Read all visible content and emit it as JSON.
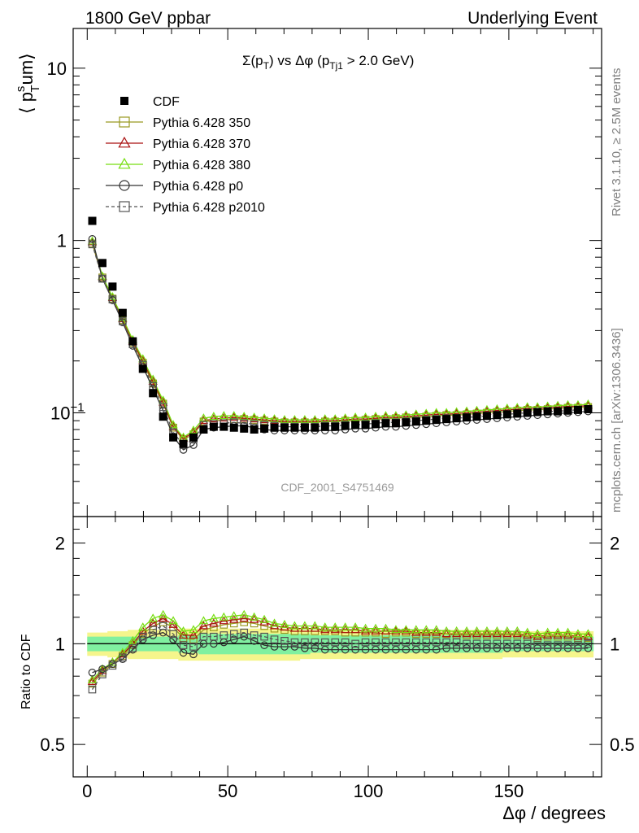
{
  "header": {
    "left": "1800 GeV ppbar",
    "right": "Underlying Event"
  },
  "side_labels": {
    "rivet": "Rivet 3.1.10, ≥ 2.5M events",
    "mcplots": "mcplots.cern.ch [arXiv:1306.3436]"
  },
  "watermark": "CDF_2001_S4751469",
  "plot_title": {
    "sigma": "Σ(p",
    "sub_T": "T",
    "mid": ") vs Δφ (p",
    "sub_Tj1": "Tj1",
    "end": " > 2.0 GeV)"
  },
  "ylabel_top": {
    "pre": "⟨ p",
    "sup": "s",
    "sub": "T",
    "post": "um⟩"
  },
  "ylabel_bottom": "Ratio to CDF",
  "xlabel": "Δφ / degrees",
  "chart_data": [
    {
      "type": "scatter",
      "scale": "log",
      "xlim": [
        -5,
        183
      ],
      "ylim": [
        0.025,
        17
      ],
      "y_tick_labels": [
        {
          "value": 10,
          "label": "10"
        },
        {
          "value": 1,
          "label": "1"
        },
        {
          "value": 0.1,
          "label": "10",
          "sup": "−1"
        }
      ],
      "legend": {
        "placement": "top-left"
      },
      "x": [
        1.8,
        5.4,
        9.0,
        12.6,
        16.2,
        19.8,
        23.4,
        27.0,
        30.6,
        34.2,
        37.8,
        41.4,
        45.0,
        48.6,
        52.2,
        55.8,
        59.4,
        63.0,
        66.6,
        70.2,
        73.8,
        77.4,
        81.0,
        84.6,
        88.2,
        91.8,
        95.4,
        99.0,
        102.6,
        106.2,
        109.8,
        113.4,
        117.0,
        120.6,
        124.2,
        127.8,
        131.4,
        135.0,
        138.6,
        142.2,
        145.8,
        149.4,
        153.0,
        156.6,
        160.2,
        163.8,
        167.4,
        171.0,
        174.6,
        178.2
      ],
      "series": [
        {
          "name": "CDF",
          "color": "#000000",
          "marker": "filled-square",
          "line": "none",
          "values": [
            1.3,
            0.74,
            0.54,
            0.38,
            0.26,
            0.18,
            0.13,
            0.095,
            0.072,
            0.066,
            0.072,
            0.08,
            0.083,
            0.083,
            0.082,
            0.081,
            0.08,
            0.081,
            0.082,
            0.082,
            0.082,
            0.082,
            0.082,
            0.083,
            0.083,
            0.084,
            0.085,
            0.085,
            0.086,
            0.087,
            0.087,
            0.088,
            0.089,
            0.09,
            0.091,
            0.092,
            0.093,
            0.094,
            0.095,
            0.096,
            0.097,
            0.098,
            0.099,
            0.1,
            0.101,
            0.102,
            0.102,
            0.103,
            0.104,
            0.105
          ]
        },
        {
          "name": "Pythia 6.428 350",
          "color": "#999922",
          "marker": "open-square",
          "line": "solid",
          "values": [
            0.96,
            0.61,
            0.46,
            0.345,
            0.255,
            0.195,
            0.148,
            0.113,
            0.082,
            0.07,
            0.075,
            0.089,
            0.09,
            0.091,
            0.092,
            0.092,
            0.091,
            0.09,
            0.089,
            0.088,
            0.088,
            0.088,
            0.088,
            0.089,
            0.089,
            0.09,
            0.09,
            0.091,
            0.092,
            0.092,
            0.093,
            0.094,
            0.094,
            0.095,
            0.096,
            0.097,
            0.097,
            0.098,
            0.099,
            0.1,
            0.101,
            0.102,
            0.103,
            0.104,
            0.104,
            0.105,
            0.106,
            0.107,
            0.107,
            0.108
          ]
        },
        {
          "name": "Pythia 6.428 370",
          "color": "#aa1111",
          "marker": "open-triangle",
          "line": "solid",
          "values": [
            0.98,
            0.615,
            0.465,
            0.35,
            0.26,
            0.2,
            0.152,
            0.115,
            0.083,
            0.071,
            0.077,
            0.09,
            0.092,
            0.093,
            0.094,
            0.093,
            0.092,
            0.091,
            0.09,
            0.089,
            0.089,
            0.089,
            0.089,
            0.09,
            0.09,
            0.091,
            0.092,
            0.092,
            0.093,
            0.094,
            0.094,
            0.095,
            0.096,
            0.097,
            0.098,
            0.098,
            0.099,
            0.1,
            0.101,
            0.102,
            0.103,
            0.104,
            0.105,
            0.106,
            0.106,
            0.107,
            0.108,
            0.109,
            0.109,
            0.11
          ]
        },
        {
          "name": "Pythia 6.428 380",
          "color": "#77dd11",
          "marker": "open-triangle",
          "line": "solid",
          "values": [
            0.99,
            0.62,
            0.47,
            0.355,
            0.265,
            0.205,
            0.156,
            0.118,
            0.085,
            0.072,
            0.079,
            0.093,
            0.095,
            0.096,
            0.096,
            0.095,
            0.094,
            0.093,
            0.092,
            0.091,
            0.091,
            0.091,
            0.091,
            0.092,
            0.092,
            0.093,
            0.094,
            0.094,
            0.095,
            0.096,
            0.096,
            0.097,
            0.098,
            0.099,
            0.1,
            0.1,
            0.101,
            0.102,
            0.103,
            0.104,
            0.105,
            0.106,
            0.107,
            0.108,
            0.108,
            0.109,
            0.11,
            0.111,
            0.111,
            0.112
          ]
        },
        {
          "name": "Pythia 6.428 p0",
          "color": "#333333",
          "marker": "open-circle",
          "line": "solid",
          "values": [
            1.02,
            0.6,
            0.45,
            0.335,
            0.245,
            0.185,
            0.138,
            0.103,
            0.073,
            0.061,
            0.065,
            0.08,
            0.082,
            0.083,
            0.084,
            0.084,
            0.082,
            0.08,
            0.079,
            0.079,
            0.079,
            0.079,
            0.079,
            0.079,
            0.079,
            0.08,
            0.081,
            0.081,
            0.082,
            0.083,
            0.083,
            0.084,
            0.085,
            0.086,
            0.087,
            0.088,
            0.089,
            0.09,
            0.091,
            0.092,
            0.093,
            0.094,
            0.095,
            0.096,
            0.097,
            0.098,
            0.099,
            0.1,
            0.101,
            0.102
          ]
        },
        {
          "name": "Pythia 6.428 p2010",
          "color": "#555555",
          "marker": "open-square",
          "line": "dashed",
          "values": [
            0.95,
            0.6,
            0.455,
            0.34,
            0.25,
            0.19,
            0.143,
            0.108,
            0.077,
            0.065,
            0.07,
            0.085,
            0.086,
            0.087,
            0.088,
            0.087,
            0.086,
            0.085,
            0.084,
            0.083,
            0.083,
            0.083,
            0.083,
            0.084,
            0.084,
            0.085,
            0.085,
            0.086,
            0.087,
            0.088,
            0.088,
            0.089,
            0.09,
            0.091,
            0.092,
            0.093,
            0.093,
            0.094,
            0.095,
            0.096,
            0.097,
            0.098,
            0.099,
            0.1,
            0.101,
            0.102,
            0.102,
            0.103,
            0.104,
            0.105
          ]
        }
      ]
    },
    {
      "type": "scatter",
      "scale": "log",
      "xlim": [
        -5,
        183
      ],
      "ylim": [
        0.4,
        2.4
      ],
      "x_ticks": [
        0,
        50,
        100,
        150
      ],
      "y_tick_labels": [
        {
          "value": 2,
          "label": "2"
        },
        {
          "value": 1,
          "label": "1"
        },
        {
          "value": 0.5,
          "label": "0.5"
        }
      ],
      "band_colors": {
        "outer": "#f5f58c",
        "inner": "#80f0a0"
      },
      "band_inner": [
        0.05,
        0.05,
        0.05,
        0.05,
        0.05,
        0.05,
        0.05,
        0.05,
        0.05,
        0.06,
        0.06,
        0.07,
        0.07,
        0.07,
        0.07,
        0.07,
        0.07,
        0.07,
        0.07,
        0.07,
        0.07,
        0.07,
        0.06,
        0.06,
        0.06,
        0.06,
        0.06,
        0.06,
        0.06,
        0.06,
        0.06,
        0.06,
        0.06,
        0.06,
        0.06,
        0.06,
        0.06,
        0.06,
        0.06,
        0.06,
        0.06,
        0.05,
        0.05,
        0.05,
        0.05,
        0.05,
        0.05,
        0.05,
        0.05,
        0.05
      ],
      "band_outer": [
        0.08,
        0.08,
        0.09,
        0.09,
        0.1,
        0.1,
        0.1,
        0.1,
        0.1,
        0.11,
        0.11,
        0.11,
        0.11,
        0.11,
        0.11,
        0.11,
        0.11,
        0.11,
        0.11,
        0.11,
        0.11,
        0.1,
        0.1,
        0.1,
        0.1,
        0.1,
        0.1,
        0.1,
        0.1,
        0.1,
        0.1,
        0.1,
        0.1,
        0.1,
        0.1,
        0.1,
        0.1,
        0.1,
        0.1,
        0.1,
        0.1,
        0.09,
        0.09,
        0.09,
        0.09,
        0.09,
        0.09,
        0.09,
        0.09,
        0.09
      ],
      "series": [
        {
          "name": "Pythia 6.428 350",
          "values": [
            0.76,
            0.82,
            0.87,
            0.92,
            0.99,
            1.07,
            1.13,
            1.16,
            1.12,
            1.04,
            1.03,
            1.1,
            1.12,
            1.14,
            1.15,
            1.16,
            1.15,
            1.13,
            1.11,
            1.1,
            1.09,
            1.09,
            1.09,
            1.09,
            1.09,
            1.08,
            1.08,
            1.08,
            1.08,
            1.07,
            1.08,
            1.08,
            1.07,
            1.07,
            1.07,
            1.07,
            1.06,
            1.06,
            1.06,
            1.06,
            1.06,
            1.06,
            1.06,
            1.05,
            1.04,
            1.05,
            1.05,
            1.05,
            1.04,
            1.04
          ]
        },
        {
          "name": "Pythia 6.428 370",
          "values": [
            0.77,
            0.83,
            0.88,
            0.93,
            1.0,
            1.09,
            1.15,
            1.19,
            1.14,
            1.06,
            1.06,
            1.13,
            1.15,
            1.17,
            1.18,
            1.19,
            1.18,
            1.16,
            1.13,
            1.12,
            1.11,
            1.11,
            1.11,
            1.1,
            1.1,
            1.1,
            1.1,
            1.09,
            1.09,
            1.09,
            1.09,
            1.09,
            1.08,
            1.08,
            1.08,
            1.07,
            1.07,
            1.07,
            1.07,
            1.07,
            1.07,
            1.07,
            1.07,
            1.06,
            1.05,
            1.06,
            1.06,
            1.06,
            1.05,
            1.05
          ]
        },
        {
          "name": "Pythia 6.428 380",
          "values": [
            0.78,
            0.84,
            0.88,
            0.94,
            1.02,
            1.12,
            1.19,
            1.22,
            1.17,
            1.09,
            1.1,
            1.17,
            1.19,
            1.2,
            1.21,
            1.22,
            1.2,
            1.18,
            1.15,
            1.14,
            1.13,
            1.13,
            1.13,
            1.12,
            1.12,
            1.12,
            1.12,
            1.11,
            1.11,
            1.11,
            1.1,
            1.1,
            1.1,
            1.1,
            1.1,
            1.09,
            1.09,
            1.09,
            1.09,
            1.09,
            1.09,
            1.09,
            1.09,
            1.08,
            1.07,
            1.08,
            1.08,
            1.08,
            1.07,
            1.07
          ]
        },
        {
          "name": "Pythia 6.428 p0",
          "values": [
            0.82,
            0.84,
            0.87,
            0.9,
            0.96,
            1.03,
            1.06,
            1.08,
            1.03,
            0.94,
            0.93,
            1.0,
            1.0,
            1.01,
            1.03,
            1.05,
            1.02,
            0.99,
            0.98,
            0.98,
            0.98,
            0.97,
            0.97,
            0.96,
            0.96,
            0.96,
            0.96,
            0.96,
            0.96,
            0.96,
            0.96,
            0.96,
            0.96,
            0.96,
            0.96,
            0.97,
            0.97,
            0.97,
            0.97,
            0.97,
            0.97,
            0.97,
            0.97,
            0.97,
            0.97,
            0.97,
            0.97,
            0.97,
            0.97,
            0.97
          ]
        },
        {
          "name": "Pythia 6.428 p2010",
          "values": [
            0.73,
            0.81,
            0.86,
            0.91,
            0.97,
            1.05,
            1.1,
            1.13,
            1.07,
            0.99,
            0.98,
            1.05,
            1.05,
            1.06,
            1.07,
            1.08,
            1.06,
            1.05,
            1.03,
            1.02,
            1.01,
            1.01,
            1.01,
            1.01,
            1.01,
            1.01,
            1.0,
            1.01,
            1.01,
            1.01,
            1.01,
            1.01,
            1.01,
            1.01,
            1.01,
            1.01,
            1.01,
            1.0,
            1.0,
            1.0,
            1.0,
            1.0,
            1.0,
            1.0,
            0.99,
            0.99,
            0.99,
            0.99,
            0.99,
            1.0
          ]
        }
      ]
    }
  ]
}
